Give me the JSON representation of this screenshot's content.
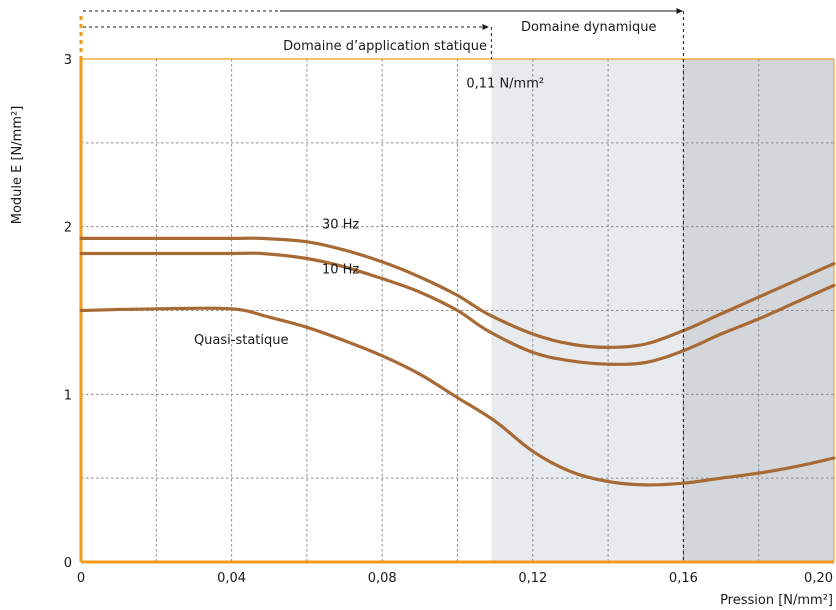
{
  "colors": {
    "curve": "#a86a35",
    "axis_accent": "#f39a1e",
    "zone_static_light": "#e8ebee",
    "zone_dynamic_dark": "#d3d7dc",
    "grid": "#8c8c8c"
  },
  "chart_data": {
    "type": "line",
    "xlabel": "Pression [N/mm²]",
    "ylabel": "Module E [N/mm²]",
    "xlim": [
      0,
      0.2
    ],
    "ylim": [
      0,
      3
    ],
    "x_ticks": [
      {
        "value": 0,
        "label": "0"
      },
      {
        "value": 0.04,
        "label": "0,04"
      },
      {
        "value": 0.08,
        "label": "0,08"
      },
      {
        "value": 0.12,
        "label": "0,12"
      },
      {
        "value": 0.16,
        "label": "0,16"
      },
      {
        "value": 0.2,
        "label": "0,20"
      }
    ],
    "y_ticks": [
      {
        "value": 0,
        "label": "0"
      },
      {
        "value": 1,
        "label": "1"
      },
      {
        "value": 2,
        "label": "2"
      },
      {
        "value": 3,
        "label": "3"
      }
    ],
    "grid": true,
    "grid_step": {
      "x": 0.02,
      "y": 0.5
    },
    "zones": [
      {
        "from": 0.109,
        "to": 0.16,
        "shade": "light"
      },
      {
        "from": 0.16,
        "to": 0.2,
        "shade": "dark"
      }
    ],
    "ranges": [
      {
        "label": "Domaine d’application statique",
        "from": 0,
        "to": 0.109
      },
      {
        "label": "Domaine dynamique",
        "from": 0,
        "to": 0.16
      }
    ],
    "annotations": [
      {
        "text": "0,11 N/mm²",
        "x": 0.109,
        "y": 2.95
      }
    ],
    "series": [
      {
        "name": "30 Hz",
        "label_at": {
          "x": 0.064,
          "y": 1.99
        },
        "x": [
          0,
          0.02,
          0.04,
          0.048,
          0.06,
          0.07,
          0.08,
          0.09,
          0.1,
          0.108,
          0.12,
          0.13,
          0.14,
          0.15,
          0.16,
          0.17,
          0.18,
          0.19,
          0.2
        ],
        "y": [
          1.93,
          1.93,
          1.93,
          1.93,
          1.91,
          1.86,
          1.79,
          1.7,
          1.59,
          1.48,
          1.36,
          1.3,
          1.28,
          1.3,
          1.38,
          1.48,
          1.58,
          1.68,
          1.78
        ]
      },
      {
        "name": "10 Hz",
        "label_at": {
          "x": 0.064,
          "y": 1.72
        },
        "x": [
          0,
          0.02,
          0.04,
          0.048,
          0.06,
          0.07,
          0.08,
          0.09,
          0.1,
          0.108,
          0.12,
          0.13,
          0.14,
          0.15,
          0.16,
          0.17,
          0.18,
          0.19,
          0.2
        ],
        "y": [
          1.84,
          1.84,
          1.84,
          1.84,
          1.81,
          1.76,
          1.69,
          1.61,
          1.5,
          1.38,
          1.25,
          1.2,
          1.18,
          1.19,
          1.26,
          1.36,
          1.45,
          1.55,
          1.65
        ]
      },
      {
        "name": "Quasi-statique",
        "label_at": {
          "x": 0.03,
          "y": 1.3
        },
        "x": [
          0,
          0.02,
          0.04,
          0.05,
          0.06,
          0.07,
          0.08,
          0.09,
          0.1,
          0.11,
          0.12,
          0.13,
          0.14,
          0.15,
          0.16,
          0.17,
          0.18,
          0.19,
          0.2
        ],
        "y": [
          1.5,
          1.51,
          1.51,
          1.46,
          1.4,
          1.32,
          1.23,
          1.12,
          0.98,
          0.84,
          0.66,
          0.54,
          0.48,
          0.46,
          0.47,
          0.5,
          0.53,
          0.57,
          0.62
        ]
      }
    ]
  }
}
